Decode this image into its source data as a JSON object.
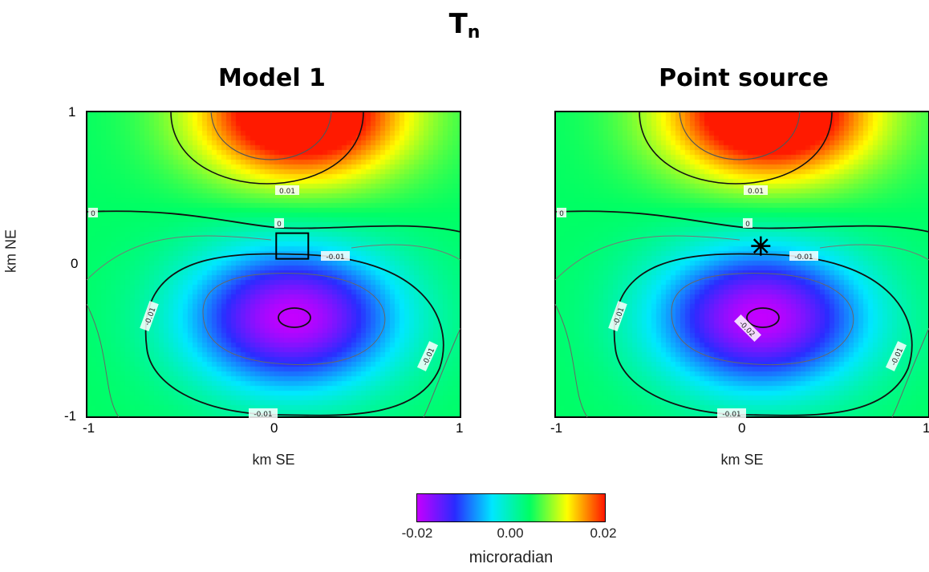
{
  "figure": {
    "title_base": "T",
    "title_sub": "n"
  },
  "chart_data": [
    {
      "type": "heatmap",
      "title": "Model 1",
      "xlabel": "km SE",
      "ylabel": "km NE",
      "xlim": [
        -1,
        1
      ],
      "ylim": [
        -1,
        1
      ],
      "x_ticks": [
        "-1",
        "0",
        "1"
      ],
      "y_ticks": [
        "1",
        "0",
        "-1"
      ],
      "contour_labels": [
        "0.01",
        "0",
        "0",
        "-0.01",
        "-0.01",
        "-0.01",
        "-0.01"
      ],
      "marker": {
        "kind": "square",
        "x": 0.1,
        "y": 0.12
      },
      "colorscale_range": [
        -0.02,
        0.02
      ]
    },
    {
      "type": "heatmap",
      "title": "Point source",
      "xlabel": "km SE",
      "ylabel": "",
      "xlim": [
        -1,
        1
      ],
      "ylim": [
        -1,
        1
      ],
      "x_ticks": [
        "-1",
        "0",
        "1"
      ],
      "y_ticks": [],
      "contour_labels": [
        "0.01",
        "0",
        "0",
        "-0.01",
        "-0.01",
        "-0.01",
        "-0.01",
        "-0.02"
      ],
      "marker": {
        "kind": "asterisk",
        "x": 0.1,
        "y": 0.12
      },
      "colorscale_range": [
        -0.02,
        0.02
      ]
    }
  ],
  "colorbar": {
    "ticks": [
      "-0.02",
      "0.00",
      "0.02"
    ],
    "label": "microradian",
    "colors": [
      "#c400ff",
      "#2a2cff",
      "#00e8ff",
      "#00ff64",
      "#ffff00",
      "#ff1a00"
    ]
  }
}
